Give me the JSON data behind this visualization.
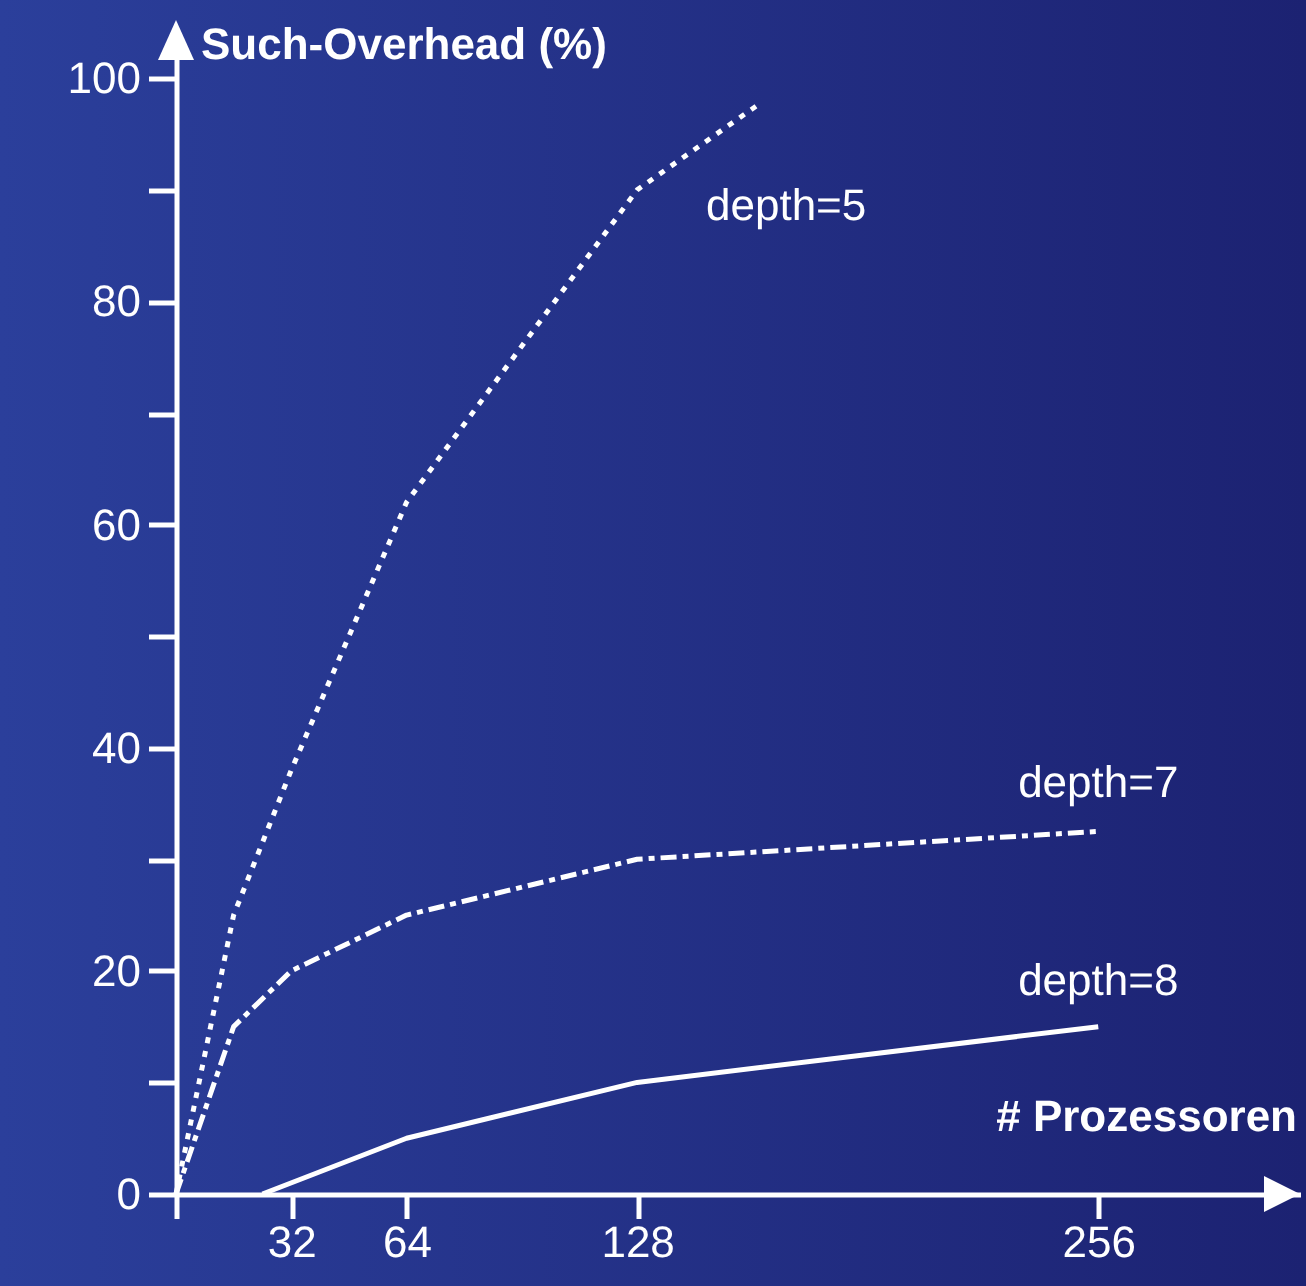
{
  "chart_data": {
    "type": "line",
    "xlabel": "# Prozessoren",
    "ylabel": "Such-Overhead (%)",
    "xlim": [
      0,
      312
    ],
    "ylim": [
      0,
      102
    ],
    "xticks": [
      {
        "value": 0,
        "label": null
      },
      32,
      64,
      128,
      256
    ],
    "yticks": [
      0,
      {
        "value": 10,
        "label": null
      },
      20,
      {
        "value": 30,
        "label": null
      },
      40,
      {
        "value": 50,
        "label": null
      },
      60,
      {
        "value": 70,
        "label": null
      },
      80,
      {
        "value": 90,
        "label": null
      },
      100
    ],
    "grid": false,
    "marker": "none",
    "series": [
      {
        "name": "depth=5",
        "color": "#ffffff",
        "line_style": "dotted",
        "x": [
          0,
          16,
          32,
          64,
          128,
          161
        ],
        "values": [
          0,
          25,
          38,
          62,
          90,
          97.5
        ]
      },
      {
        "name": "depth=7",
        "color": "#ffffff",
        "line_style": "dashed",
        "x": [
          0,
          16,
          32,
          64,
          128,
          256
        ],
        "values": [
          0,
          15,
          20,
          25,
          30,
          32.5
        ]
      },
      {
        "name": "depth=8",
        "color": "#ffffff",
        "line_style": "solid",
        "x": [
          24,
          64,
          128,
          256
        ],
        "values": [
          0,
          5,
          10,
          15
        ]
      }
    ]
  }
}
